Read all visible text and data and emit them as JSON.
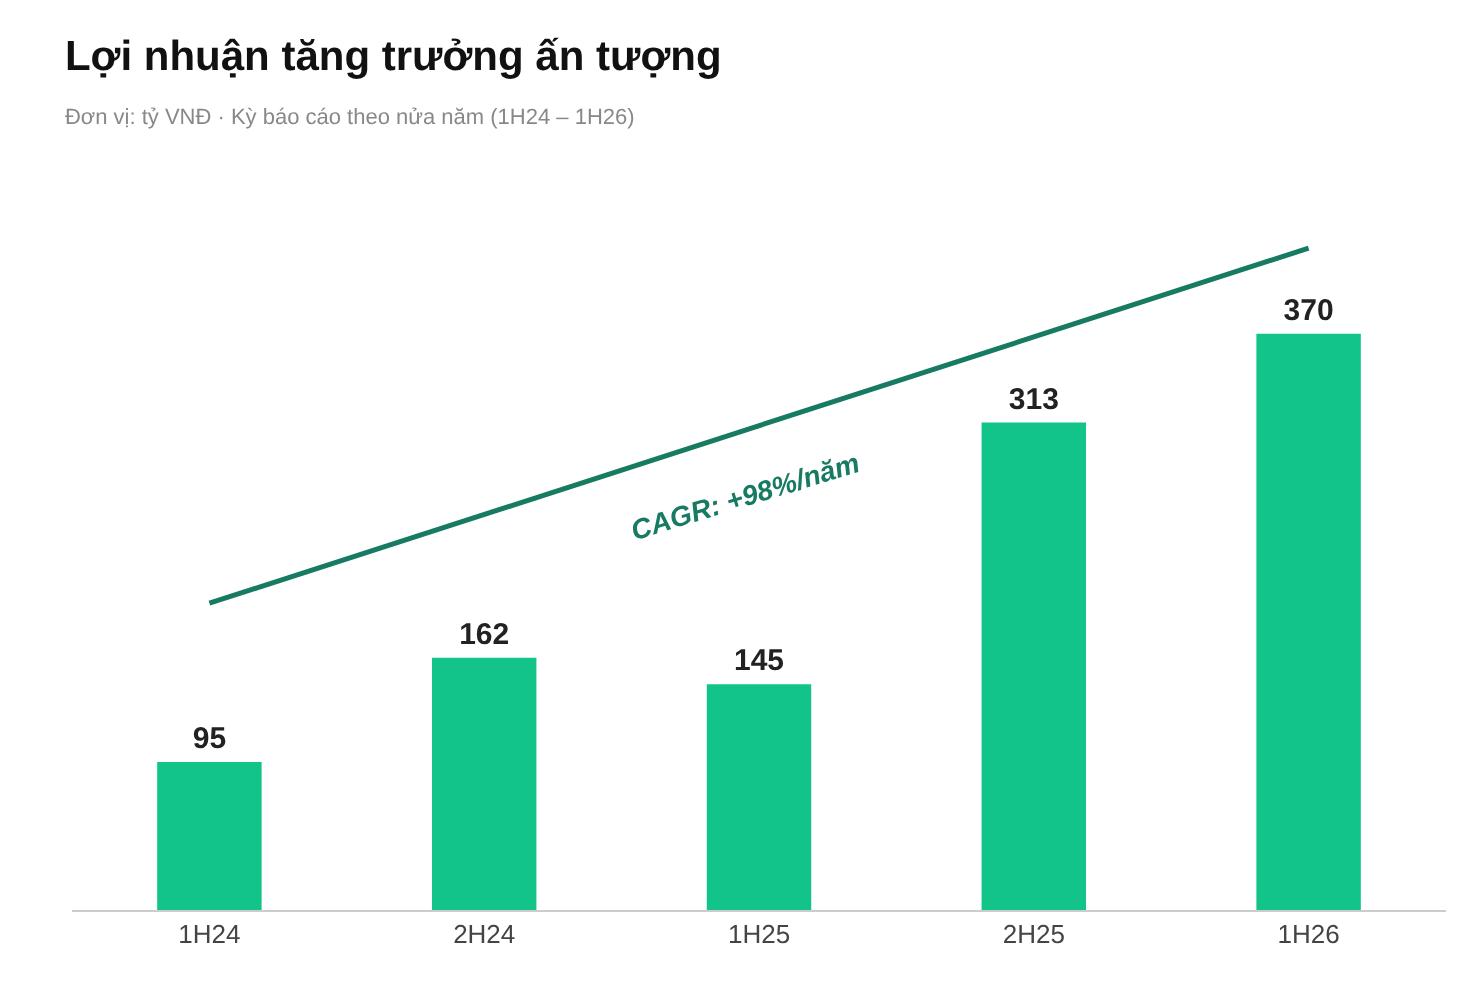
{
  "chart_data": {
    "type": "bar",
    "title": "Lợi nhuận tăng trưởng ấn tượng",
    "subtitle": "Đơn vị: tỷ VNĐ · Kỳ báo cáo theo nửa năm (1H24 – 1H26)",
    "categories": [
      "1H24",
      "2H24",
      "1H25",
      "2H25",
      "1H26"
    ],
    "values": [
      95,
      162,
      145,
      313,
      370
    ],
    "color": "#12c48a",
    "series": [
      {
        "type": "line",
        "x": [
          "1H24",
          "1H26"
        ],
        "values": [
          197,
          425
        ],
        "color": "#177a62"
      }
    ],
    "value_labels": [
      "95",
      "162",
      "145",
      "313",
      "370"
    ],
    "annotations": [
      "CAGR: +98%/năm"
    ],
    "tick_labels": "x",
    "legend": false
  }
}
